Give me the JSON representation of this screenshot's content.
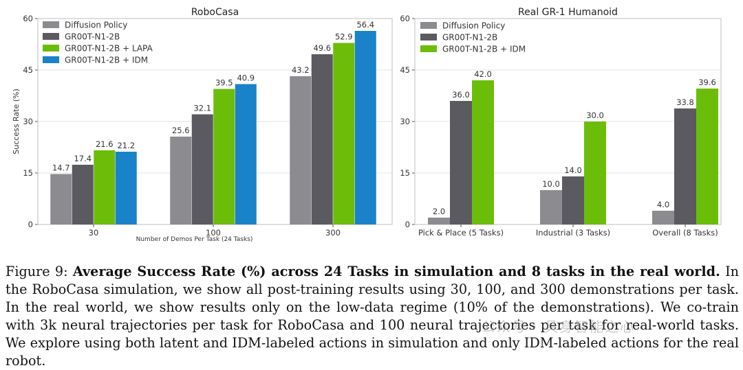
{
  "chart_data": [
    {
      "type": "bar",
      "title": "RoboCasa",
      "xlabel": "Number of Demos Per Task (24 Tasks)",
      "ylabel": "Success Rate (%)",
      "ylim": [
        0,
        60
      ],
      "yticks": [
        0,
        15,
        30,
        45,
        60
      ],
      "grid": "horizontal",
      "legend": "top-left",
      "categories": [
        "30",
        "100",
        "300"
      ],
      "series": [
        {
          "name": "Diffusion Policy",
          "color": "#8c8c90",
          "values": [
            14.7,
            25.6,
            43.2
          ]
        },
        {
          "name": "GR00T-N1-2B",
          "color": "#5a5a60",
          "values": [
            17.4,
            32.1,
            49.6
          ]
        },
        {
          "name": "GR00T-N1-2B + LAPA",
          "color": "#6cbd0a",
          "values": [
            21.6,
            39.5,
            52.9
          ]
        },
        {
          "name": "GR00T-N1-2B + IDM",
          "color": "#1a82c8",
          "values": [
            21.2,
            40.9,
            56.4
          ]
        }
      ]
    },
    {
      "type": "bar",
      "title": "Real GR-1 Humanoid",
      "xlabel": "",
      "ylabel": "",
      "ylim": [
        0,
        60
      ],
      "yticks": [
        0,
        15,
        30,
        45,
        60
      ],
      "grid": "horizontal",
      "legend": "top-left",
      "categories": [
        "Pick & Place (5 Tasks)",
        "Industrial (3 Tasks)",
        "Overall (8 Tasks)"
      ],
      "series": [
        {
          "name": "Diffusion Policy",
          "color": "#8c8c90",
          "values": [
            2.0,
            10.0,
            4.0
          ]
        },
        {
          "name": "GR00T-N1-2B",
          "color": "#5a5a60",
          "values": [
            36.0,
            14.0,
            33.8
          ]
        },
        {
          "name": "GR00T-N1-2B + IDM",
          "color": "#6cbd0a",
          "values": [
            42.0,
            30.0,
            39.6
          ]
        }
      ]
    }
  ],
  "caption": {
    "label": "Figure 9:",
    "bold": "Average Success Rate (%) across 24 Tasks in simulation and 8 tasks in the real world.",
    "text": "In the RoboCasa simulation, we show all post-training results using 30, 100, and 300 demonstrations per task. In the real world, we show results only on the low-data regime (10% of the demonstrations). We co-train with 3k neural trajectories per task for RoboCasa and 100 neural trajectories per task for real-world tasks. We explore using both latent and IDM-labeled actions in simulation and only IDM-labeled actions for the real robot."
  },
  "watermark": "公众号 · 具身智能之心"
}
